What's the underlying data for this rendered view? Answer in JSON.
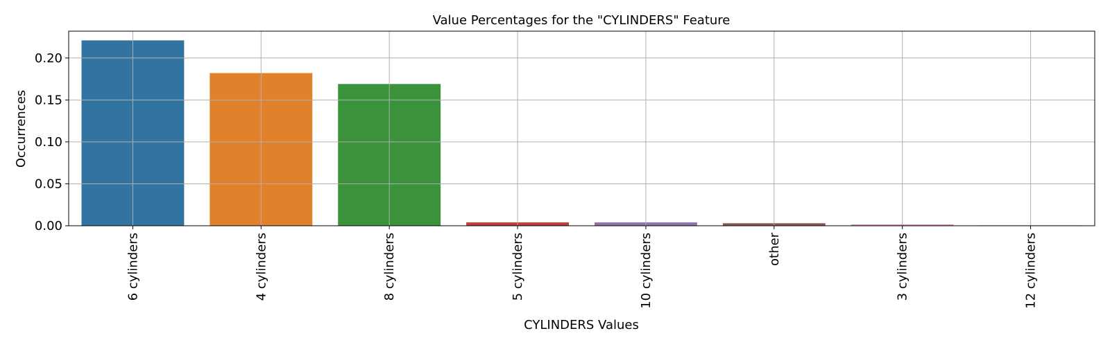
{
  "chart_data": {
    "type": "bar",
    "title": "Value Percentages for the \"CYLINDERS\" Feature",
    "xlabel": "CYLINDERS Values",
    "ylabel": "Occurrences",
    "categories": [
      "6 cylinders",
      "4 cylinders",
      "8 cylinders",
      "5 cylinders",
      "10 cylinders",
      "other",
      "3 cylinders",
      "12 cylinders"
    ],
    "values": [
      0.221,
      0.182,
      0.169,
      0.004,
      0.004,
      0.003,
      0.0015,
      0.0005
    ],
    "colors": [
      "#3274a1",
      "#e1812c",
      "#3a923a",
      "#c03d3e",
      "#9372b2",
      "#845b53",
      "#d684bd",
      "#7f7f7f"
    ],
    "yticks": [
      "0.00",
      "0.05",
      "0.10",
      "0.15",
      "0.20"
    ],
    "ylim": [
      0,
      0.232
    ],
    "grid": true,
    "legend": "none"
  }
}
